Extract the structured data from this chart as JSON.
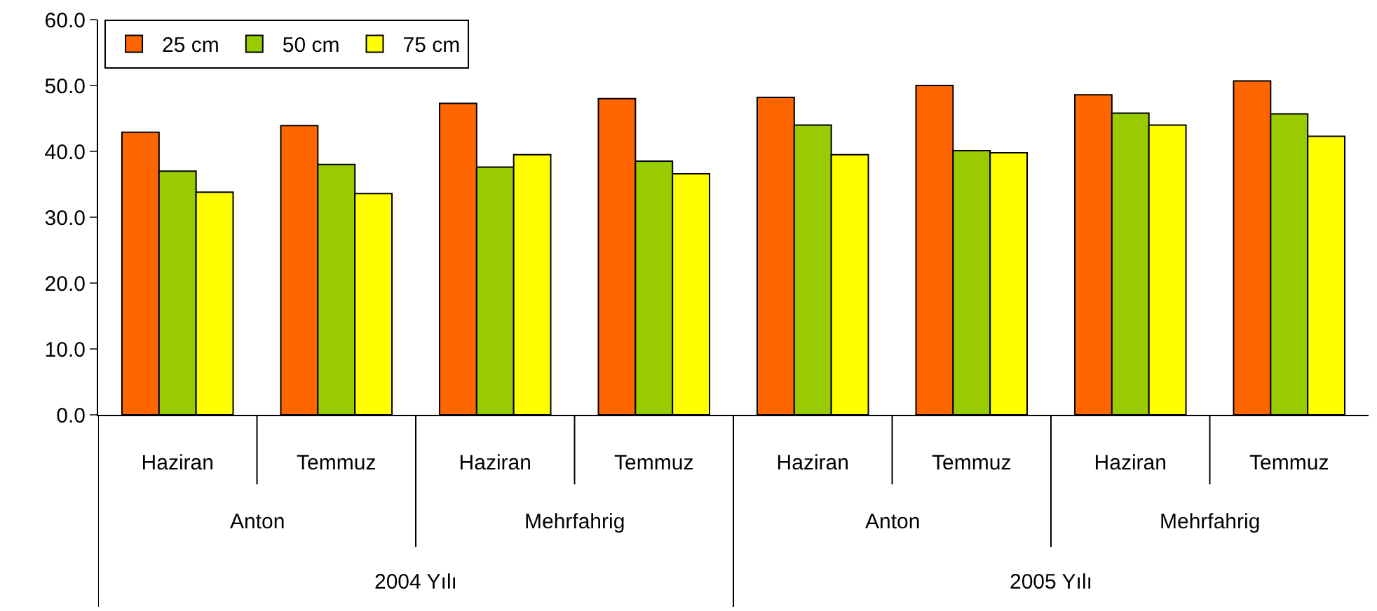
{
  "chart_data": {
    "type": "bar",
    "categories": [
      "Haziran",
      "Temmuz",
      "Haziran",
      "Temmuz",
      "Haziran",
      "Temmuz",
      "Haziran",
      "Temmuz"
    ],
    "series": [
      {
        "name": "25 cm",
        "color": "#ff6600",
        "values": [
          42.9,
          43.9,
          47.3,
          48.0,
          48.2,
          50.0,
          48.6,
          50.7
        ]
      },
      {
        "name": "50 cm",
        "color": "#99cc00",
        "values": [
          37.0,
          38.0,
          37.6,
          38.5,
          44.0,
          40.1,
          45.8,
          45.7
        ]
      },
      {
        "name": "75 cm",
        "color": "#ffff00",
        "values": [
          33.8,
          33.6,
          39.5,
          36.6,
          39.5,
          39.8,
          44.0,
          42.3
        ]
      }
    ],
    "annotations": [
      "Anton",
      "Mehrfahrig",
      "Anton",
      "Mehrfahrig",
      "2004 Yılı",
      "2005 Yılı"
    ],
    "ylim": [
      0,
      60
    ],
    "yticks": [
      {
        "value": 0,
        "label": "0.0"
      },
      {
        "value": 10,
        "label": "10.0"
      },
      {
        "value": 20,
        "label": "20.0"
      },
      {
        "value": 30,
        "label": "30.0"
      },
      {
        "value": 40,
        "label": "40.0"
      },
      {
        "value": 50,
        "label": "50.0"
      },
      {
        "value": 60,
        "label": "60.0"
      }
    ],
    "grid": false,
    "legend": "top left"
  }
}
